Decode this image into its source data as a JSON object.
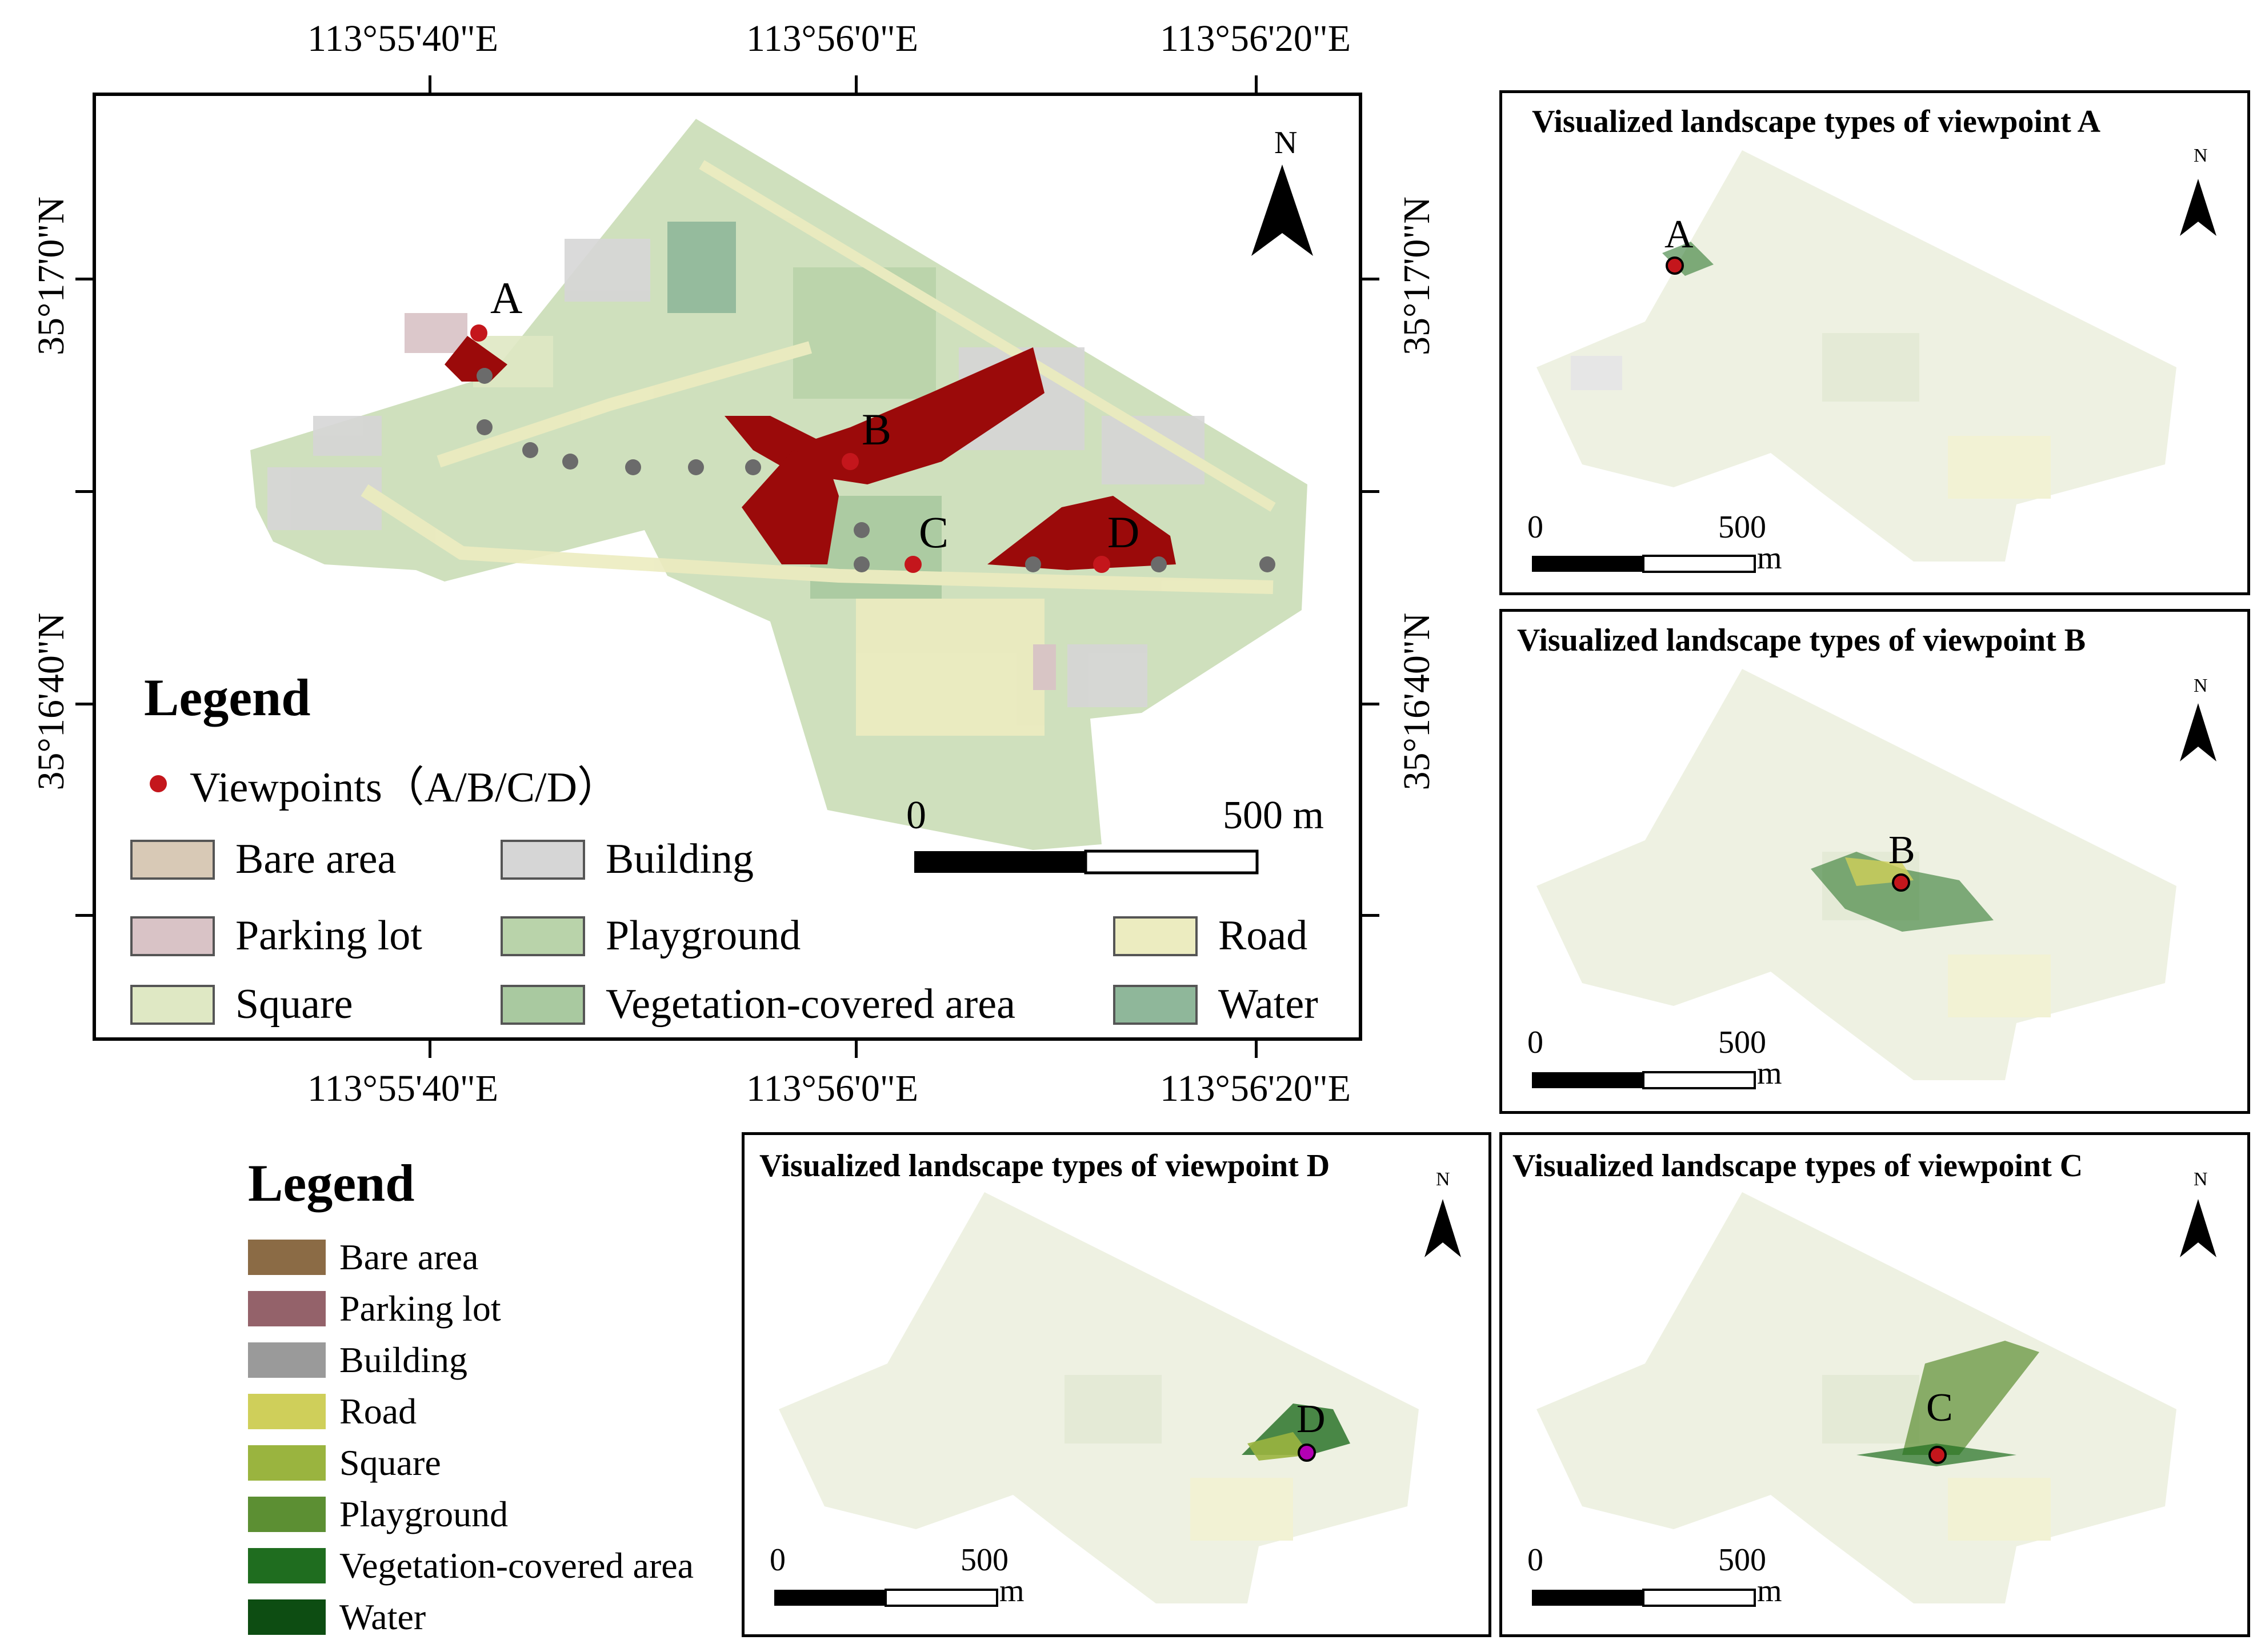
{
  "main_map": {
    "top_lon_labels": [
      "113°55'40\"E",
      "113°56'0\"E",
      "113°56'20\"E"
    ],
    "bottom_lon_labels": [
      "113°55'40\"E",
      "113°56'0\"E",
      "113°56'20\"E"
    ],
    "left_lat_labels": [
      "35°17'0\"N",
      "35°16'40\"N"
    ],
    "right_lat_labels": [
      "35°17'0\"N",
      "35°16'40\"N"
    ],
    "north_label": "N",
    "viewpoint_labels": [
      "A",
      "B",
      "C",
      "D"
    ],
    "scale": {
      "zero": "0",
      "max": "500 m"
    },
    "legend": {
      "title": "Legend",
      "viewpoints_label": "Viewpoints（A/B/C/D）",
      "items": [
        {
          "label": "Bare area",
          "color": "#d8c9b6"
        },
        {
          "label": "Building",
          "color": "#d6d6d6"
        },
        {
          "label": "Parking lot",
          "color": "#d9c3c6"
        },
        {
          "label": "Playground",
          "color": "#b9d3aa"
        },
        {
          "label": "Road",
          "color": "#ececc0"
        },
        {
          "label": "Square",
          "color": "#dfe8c4"
        },
        {
          "label": "Vegetation-covered area",
          "color": "#a9c9a0"
        },
        {
          "label": "Water",
          "color": "#8fb79a"
        }
      ]
    }
  },
  "panels": {
    "a": {
      "title": "Visualized landscape types of viewpoint A",
      "label": "A",
      "north": "N",
      "scale_zero": "0",
      "scale_max": "500",
      "scale_unit": "m"
    },
    "b": {
      "title": "Visualized landscape types of viewpoint B",
      "label": "B",
      "north": "N",
      "scale_zero": "0",
      "scale_max": "500",
      "scale_unit": "m"
    },
    "c": {
      "title": "Visualized landscape types of viewpoint C",
      "label": "C",
      "north": "N",
      "scale_zero": "0",
      "scale_max": "500",
      "scale_unit": "m"
    },
    "d": {
      "title": "Visualized landscape types of viewpoint D",
      "label": "D",
      "north": "N",
      "scale_zero": "0",
      "scale_max": "500",
      "scale_unit": "m"
    }
  },
  "legend2": {
    "title": "Legend",
    "items": [
      {
        "label": "Bare area",
        "color": "#8b6b45"
      },
      {
        "label": "Parking lot",
        "color": "#94626a"
      },
      {
        "label": "Building",
        "color": "#9a9a9a"
      },
      {
        "label": "Road",
        "color": "#cfcf5a"
      },
      {
        "label": "Square",
        "color": "#9ab43f"
      },
      {
        "label": "Playground",
        "color": "#5c8f33"
      },
      {
        "label": "Vegetation-covered area",
        "color": "#1f6d1f"
      },
      {
        "label": "Water",
        "color": "#0d4d12"
      }
    ]
  },
  "colors": {
    "viewshed": "#9b0a0a",
    "viewpoint": "#c4161c",
    "route_point": "#6b6b6b",
    "campus_base": "#cfe0bd"
  }
}
